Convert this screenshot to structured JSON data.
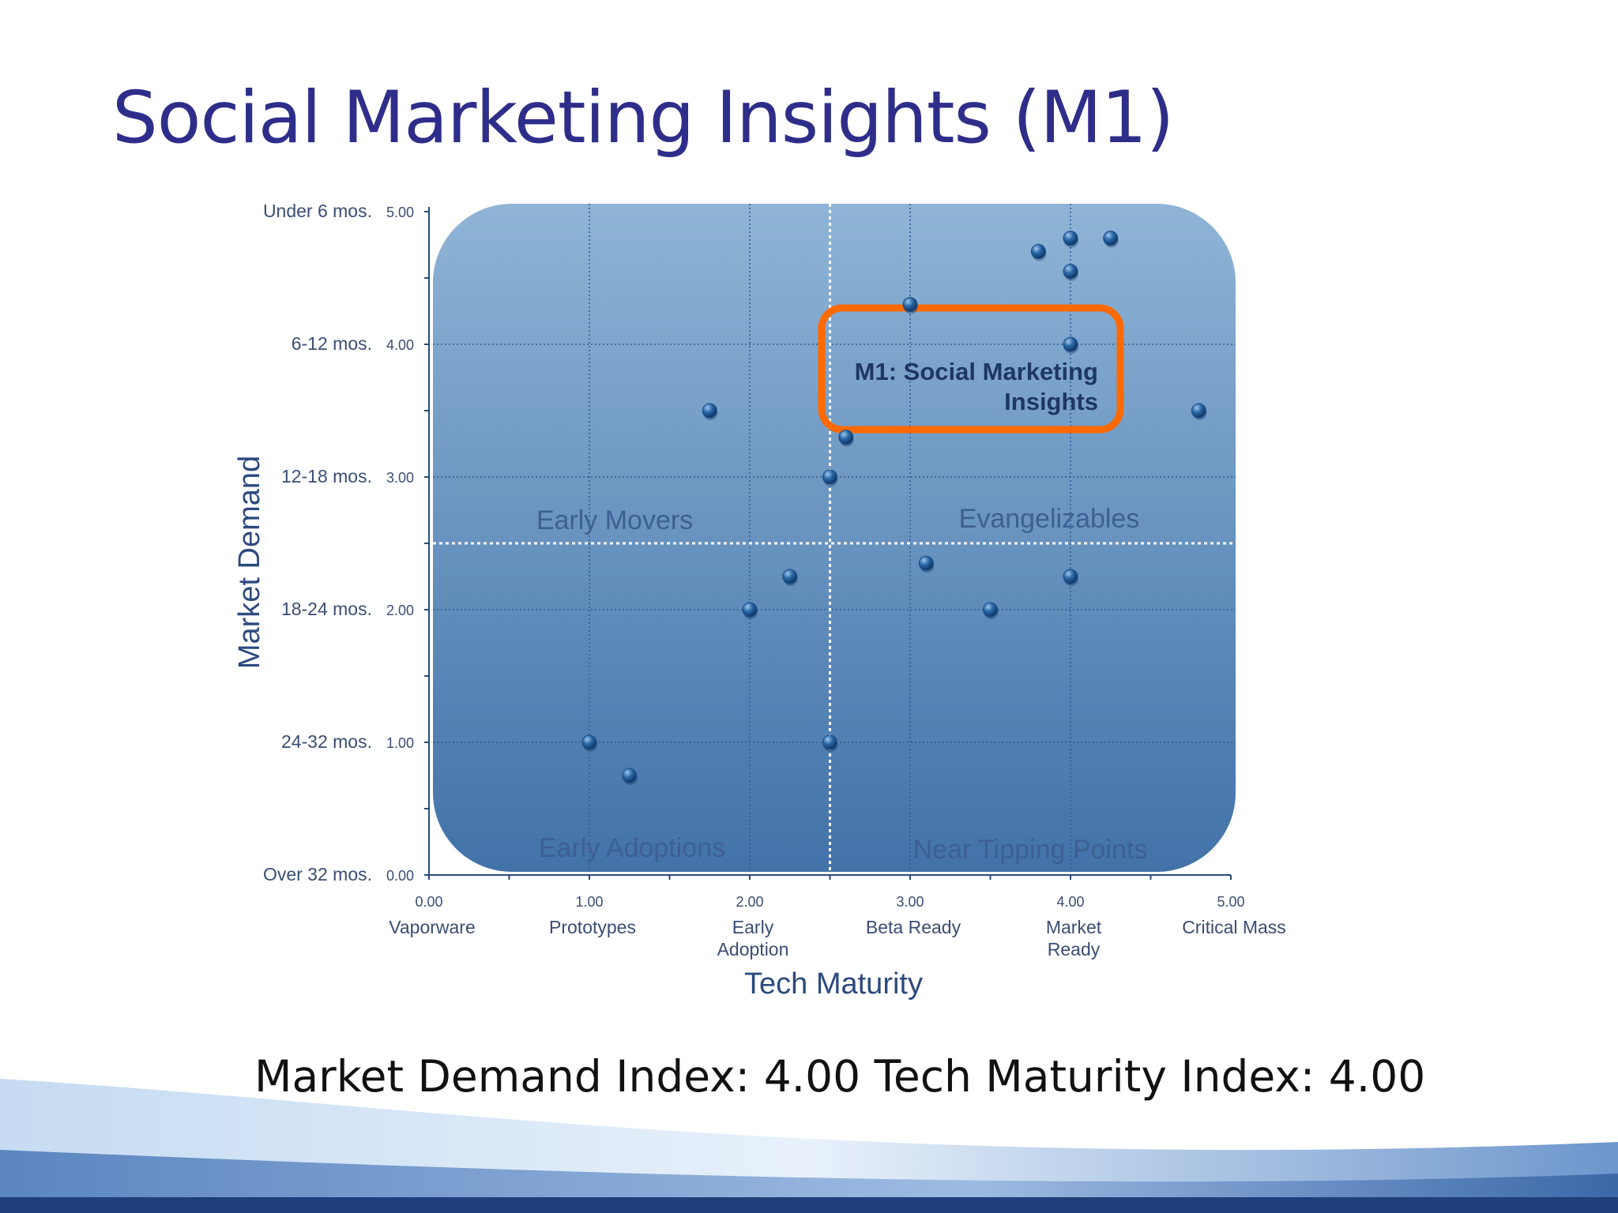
{
  "slide": {
    "title": "Social Marketing Insights (M1)",
    "caption": "Market Demand Index: 4.00 Tech Maturity Index: 4.00"
  },
  "chart_data": {
    "type": "scatter",
    "xlabel": "Tech Maturity",
    "ylabel": "Market Demand",
    "xlim": [
      0,
      5
    ],
    "ylim": [
      0,
      5
    ],
    "grid": true,
    "x_ticks": [
      {
        "value": 0,
        "number": "0.00",
        "label": [
          "Vaporware"
        ]
      },
      {
        "value": 1,
        "number": "1.00",
        "label": [
          "Prototypes"
        ]
      },
      {
        "value": 2,
        "number": "2.00",
        "label": [
          "Early",
          "Adoption"
        ]
      },
      {
        "value": 3,
        "number": "3.00",
        "label": [
          "Beta Ready"
        ]
      },
      {
        "value": 4,
        "number": "4.00",
        "label": [
          "Market",
          "Ready"
        ]
      },
      {
        "value": 5,
        "number": "5.00",
        "label": [
          "Critical Mass"
        ]
      }
    ],
    "y_ticks": [
      {
        "value": 5,
        "number": "5.00",
        "label": "Under 6 mos."
      },
      {
        "value": 4,
        "number": "4.00",
        "label": "6-12 mos."
      },
      {
        "value": 3,
        "number": "3.00",
        "label": "12-18 mos."
      },
      {
        "value": 2,
        "number": "2.00",
        "label": "18-24 mos."
      },
      {
        "value": 1,
        "number": "1.00",
        "label": "24-32 mos."
      },
      {
        "value": 0,
        "number": "0.00",
        "label": "Over 32 mos."
      }
    ],
    "dividers": {
      "x": 2.5,
      "y": 2.5
    },
    "quadrants": {
      "top_left": "Early Movers",
      "top_right": "Evangelizables",
      "bottom_left": "Early Adoptions",
      "bottom_right": "Near Tipping Points"
    },
    "highlight": {
      "label": [
        "M1: Social Marketing",
        "Insights"
      ],
      "x": 4.0,
      "y": 4.0,
      "color": "#ff6a00"
    },
    "points": [
      {
        "x": 3.8,
        "y": 4.7
      },
      {
        "x": 4.0,
        "y": 4.8
      },
      {
        "x": 4.25,
        "y": 4.8
      },
      {
        "x": 4.0,
        "y": 4.55
      },
      {
        "x": 3.0,
        "y": 4.3
      },
      {
        "x": 4.0,
        "y": 4.0
      },
      {
        "x": 1.75,
        "y": 3.5
      },
      {
        "x": 4.8,
        "y": 3.5
      },
      {
        "x": 2.6,
        "y": 3.3
      },
      {
        "x": 2.5,
        "y": 3.0
      },
      {
        "x": 3.1,
        "y": 2.35
      },
      {
        "x": 2.25,
        "y": 2.25
      },
      {
        "x": 4.0,
        "y": 2.25
      },
      {
        "x": 2.0,
        "y": 2.0
      },
      {
        "x": 3.5,
        "y": 2.0
      },
      {
        "x": 1.0,
        "y": 1.0
      },
      {
        "x": 2.5,
        "y": 1.0
      },
      {
        "x": 1.25,
        "y": 0.75
      }
    ],
    "colors": {
      "panel_top": "#8fb4d6",
      "panel_bottom": "#4272a8",
      "point": "#1a4e86",
      "axis_text": "#3a4d73",
      "axis_title": "#2c4a7f",
      "quadrant_text": "#3d5f92"
    }
  }
}
